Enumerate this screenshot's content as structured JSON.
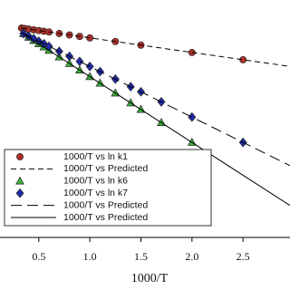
{
  "chart_data": {
    "type": "scatter-line",
    "x_label": "1000/T",
    "xlim": [
      0.12,
      2.96
    ],
    "ylim": [
      0,
      262
    ],
    "xticks": [
      0.5,
      {
        "value": 1,
        "label": "1.0"
      },
      1.5,
      {
        "value": 2,
        "label": "2.0"
      },
      2.5
    ],
    "legend": "lower-left",
    "series": [
      {
        "name": "1000/T vs ln k1",
        "color": "#b0302a",
        "marker": "circle",
        "linestyle": "none",
        "x": [
          0.33,
          0.36,
          0.4,
          0.45,
          0.5,
          0.55,
          0.6,
          0.7,
          0.8,
          0.9,
          1.0,
          1.25,
          1.5,
          2.0,
          2.5
        ],
        "values": [
          231.0,
          230.5,
          229.9,
          229.1,
          228.3,
          227.5,
          226.7,
          225.0,
          223.4,
          221.8,
          220.2,
          216.2,
          212.2,
          204.1,
          196.1
        ]
      },
      {
        "name": "1000/T vs Predicted",
        "color": "#000000",
        "marker": "none",
        "linestyle": "dashed",
        "x": [
          0.33,
          2.96
        ],
        "values": [
          231.0,
          188.7
        ]
      },
      {
        "name": "1000/T vs ln k6",
        "color": "#3cb43c",
        "marker": "triangle",
        "linestyle": "none",
        "x": [
          0.35,
          0.4,
          0.45,
          0.5,
          0.55,
          0.6,
          0.7,
          0.8,
          0.9,
          1.0,
          1.1,
          1.25,
          1.4,
          1.5,
          1.7,
          2.0
        ],
        "values": [
          224.6,
          220.9,
          217.3,
          213.7,
          210.1,
          206.4,
          199.2,
          191.9,
          184.7,
          177.4,
          170.2,
          159.3,
          148.4,
          141.2,
          126.7,
          104.9
        ]
      },
      {
        "name": "1000/T vs ln k7",
        "color": "#1f2aa8",
        "marker": "diamond",
        "linestyle": "none",
        "x": [
          0.35,
          0.4,
          0.45,
          0.5,
          0.55,
          0.6,
          0.7,
          0.8,
          0.9,
          1.0,
          1.1,
          1.25,
          1.4,
          1.5,
          1.7,
          2.0,
          2.5
        ],
        "values": [
          224.9,
          222.1,
          219.3,
          216.5,
          213.7,
          210.9,
          205.4,
          199.8,
          194.2,
          188.6,
          183.0,
          174.7,
          166.3,
          160.7,
          149.6,
          132.8,
          104.9
        ]
      },
      {
        "name": "1000/T vs Predicted",
        "color": "#000000",
        "marker": "none",
        "linestyle": "long-dashed",
        "x": [
          0.33,
          2.96
        ],
        "values": [
          226.0,
          79.2
        ]
      },
      {
        "name": "1000/T vs Predicted",
        "color": "#000000",
        "marker": "none",
        "linestyle": "solid",
        "x": [
          0.33,
          2.96
        ],
        "values": [
          226.0,
          35.3
        ]
      }
    ]
  }
}
